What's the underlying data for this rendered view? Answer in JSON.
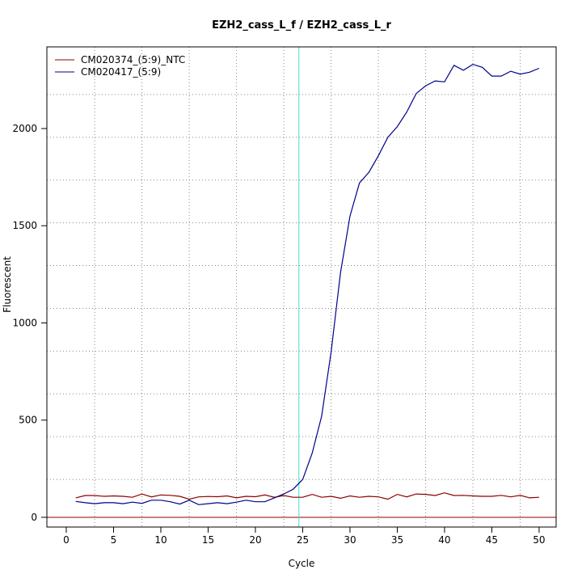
{
  "chart_data": {
    "type": "line",
    "title": "EZH2_cass_L_f / EZH2_cass_L_r",
    "x_label": "Cycle",
    "y_label": "Fluorescent",
    "x": [
      1,
      2,
      3,
      4,
      5,
      6,
      7,
      8,
      9,
      10,
      11,
      12,
      13,
      14,
      15,
      16,
      17,
      18,
      19,
      20,
      21,
      22,
      23,
      24,
      25,
      26,
      27,
      28,
      29,
      30,
      31,
      32,
      33,
      34,
      35,
      36,
      37,
      38,
      39,
      40,
      41,
      42,
      43,
      44,
      45,
      46,
      47,
      48,
      49,
      50
    ],
    "series": [
      {
        "name": "CM020374_(5:9)_NTC",
        "color": "#8b0000",
        "values": [
          100,
          112,
          112,
          108,
          110,
          108,
          103,
          120,
          105,
          115,
          113,
          108,
          93,
          105,
          107,
          106,
          110,
          100,
          108,
          106,
          115,
          103,
          112,
          103,
          103,
          118,
          103,
          108,
          98,
          110,
          103,
          108,
          105,
          93,
          118,
          105,
          120,
          118,
          112,
          126,
          112,
          113,
          110,
          108,
          108,
          113,
          105,
          113,
          100,
          103
        ]
      },
      {
        "name": "CM020417_(5:9)",
        "color": "#00008b",
        "values": [
          82,
          75,
          70,
          75,
          75,
          70,
          78,
          72,
          88,
          88,
          80,
          68,
          88,
          65,
          70,
          75,
          70,
          78,
          88,
          80,
          80,
          100,
          120,
          145,
          195,
          330,
          520,
          850,
          1260,
          1550,
          1720,
          1775,
          1860,
          1955,
          2010,
          2085,
          2180,
          2220,
          2245,
          2240,
          2325,
          2300,
          2330,
          2315,
          2270,
          2270,
          2295,
          2280,
          2290,
          2310
        ]
      }
    ],
    "xlim": [
      -2.05,
      51.8
    ],
    "ylim": [
      -50,
      2420
    ],
    "xticks": [
      0,
      5,
      10,
      15,
      20,
      25,
      30,
      35,
      40,
      45,
      50
    ],
    "yticks": [
      0,
      500,
      1000,
      1500,
      2000
    ],
    "xgrid": [
      3,
      8,
      13,
      18,
      23,
      28,
      33,
      38,
      43,
      48
    ],
    "ygrid": [
      195,
      415,
      635,
      855,
      1075,
      1295,
      1515,
      1735,
      1955,
      2175
    ],
    "threshold_cycle": 24.6,
    "threshold_color": "#40e0d0",
    "baseline": 0,
    "baseline_color": "#8b0000",
    "legend": "top-left"
  }
}
